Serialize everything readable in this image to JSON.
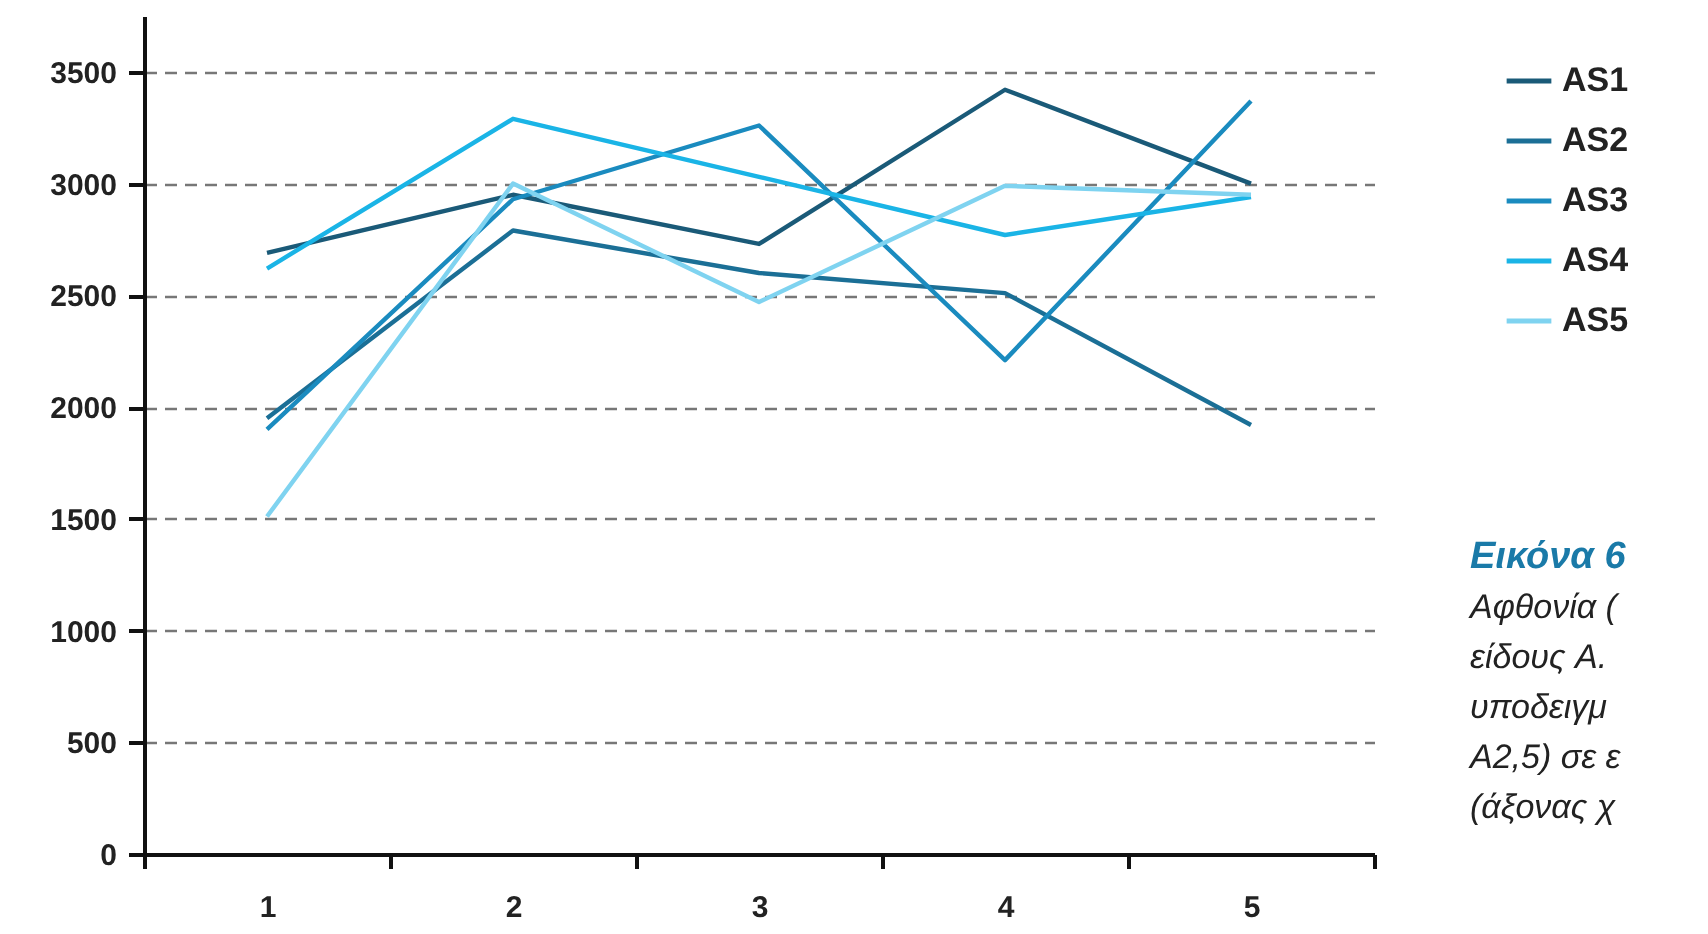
{
  "chart_data": {
    "type": "line",
    "title": "Εικόνα 6",
    "annotations": [
      "Αφθονία (",
      "είδους A.",
      "υποδειγμ",
      "A2,5) σε ε",
      "(άξονας χ"
    ],
    "categories": [
      "1",
      "2",
      "3",
      "4",
      "5"
    ],
    "series": [
      {
        "name": "AS1",
        "color": "#1a5a78",
        "values": [
          2690,
          2950,
          2730,
          3420,
          3000
        ]
      },
      {
        "name": "AS2",
        "color": "#1b6f96",
        "values": [
          1950,
          2790,
          2600,
          2510,
          1920
        ]
      },
      {
        "name": "AS3",
        "color": "#1a8bbf",
        "values": [
          1900,
          2930,
          3260,
          2210,
          3370
        ]
      },
      {
        "name": "AS4",
        "color": "#1ab4e6",
        "values": [
          2620,
          3290,
          3030,
          2770,
          2940
        ]
      },
      {
        "name": "AS5",
        "color": "#7fd3f0",
        "values": [
          1510,
          3000,
          2470,
          2990,
          2950
        ]
      }
    ],
    "ylim": [
      0,
      3750
    ],
    "yticks": [
      0,
      500,
      1000,
      1500,
      2000,
      2500,
      3000,
      3500
    ],
    "grid": "y",
    "legend": "right",
    "line_style": "solid",
    "marker": "none"
  }
}
